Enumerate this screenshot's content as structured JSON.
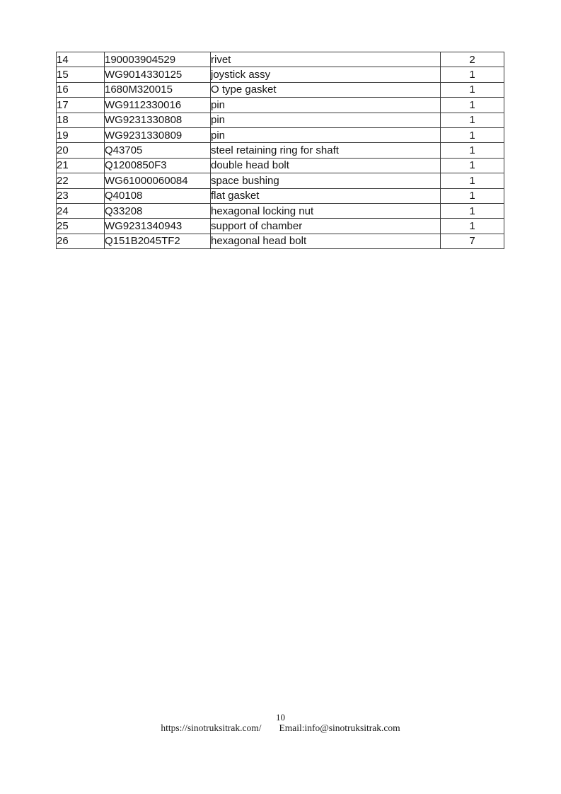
{
  "page": {
    "number": "10",
    "footer": {
      "url": "https://sinotruksitrak.com/",
      "email": "Email:info@sinotruksitrak.com"
    }
  },
  "table": {
    "columns": [
      "index",
      "part_number",
      "description",
      "quantity"
    ],
    "rows": [
      {
        "index": "14",
        "part_number": "190003904529",
        "description": "rivet",
        "quantity": "2"
      },
      {
        "index": "15",
        "part_number": "WG9014330125",
        "description": "joystick assy",
        "quantity": "1"
      },
      {
        "index": "16",
        "part_number": "1680M320015",
        "description": "O type gasket",
        "quantity": "1"
      },
      {
        "index": "17",
        "part_number": "WG9112330016",
        "description": "pin",
        "quantity": "1"
      },
      {
        "index": "18",
        "part_number": "WG9231330808",
        "description": "pin",
        "quantity": "1"
      },
      {
        "index": "19",
        "part_number": "WG9231330809",
        "description": "pin",
        "quantity": "1"
      },
      {
        "index": "20",
        "part_number": "Q43705",
        "description": "steel retaining ring for shaft",
        "quantity": "1"
      },
      {
        "index": "21",
        "part_number": "Q1200850F3",
        "description": "double head bolt",
        "quantity": "1"
      },
      {
        "index": "22",
        "part_number": "WG61000060084",
        "description": "space bushing",
        "quantity": "1"
      },
      {
        "index": "23",
        "part_number": "Q40108",
        "description": "flat gasket",
        "quantity": "1"
      },
      {
        "index": "24",
        "part_number": "Q33208",
        "description": "hexagonal locking nut",
        "quantity": "1"
      },
      {
        "index": "25",
        "part_number": "WG9231340943",
        "description": "support of chamber",
        "quantity": "1"
      },
      {
        "index": "26",
        "part_number": "Q151B2045TF2",
        "description": "hexagonal head bolt",
        "quantity": "7"
      }
    ]
  }
}
